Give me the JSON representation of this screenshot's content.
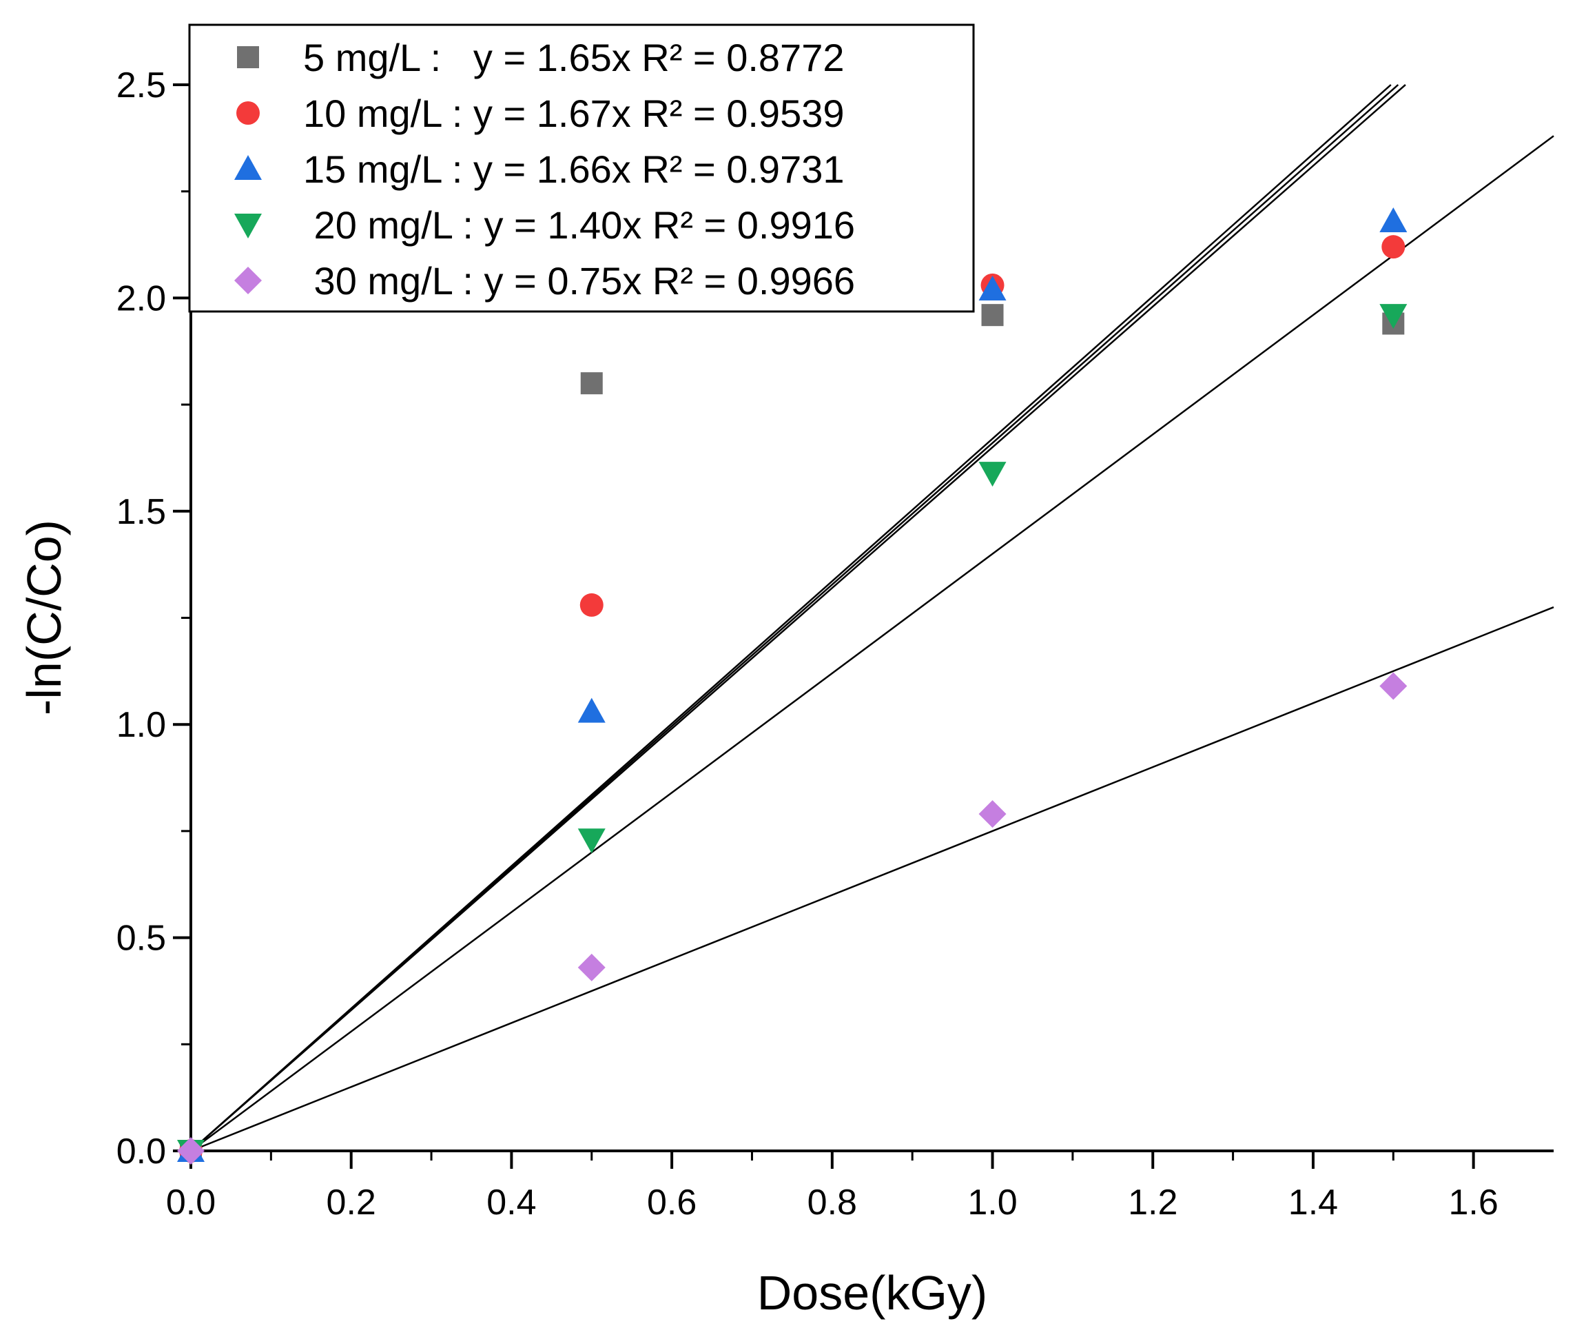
{
  "chart_data": {
    "type": "scatter",
    "xlabel": "Dose(kGy)",
    "ylabel": "-ln(C/Co)",
    "xlim": [
      0,
      1.7
    ],
    "ylim": [
      0,
      2.5
    ],
    "x_ticks": [
      "0.0",
      "0.2",
      "0.4",
      "0.6",
      "0.8",
      "1.0",
      "1.2",
      "1.4",
      "1.6"
    ],
    "y_ticks": [
      "0.0",
      "0.5",
      "1.0",
      "1.5",
      "2.0",
      "2.5"
    ],
    "grid": false,
    "legend_position": "top-left",
    "series": [
      {
        "name": "5 mg/L :   y = 1.65x R² = 0.8772",
        "marker": "square",
        "color": "#707070",
        "slope": 1.65,
        "x": [
          0,
          0.5,
          1.0,
          1.5
        ],
        "y": [
          0,
          1.8,
          1.96,
          1.94
        ]
      },
      {
        "name": "10 mg/L : y = 1.67x R² = 0.9539",
        "marker": "circle",
        "color": "#f33a3a",
        "slope": 1.67,
        "x": [
          0,
          0.5,
          1.0,
          1.5
        ],
        "y": [
          0,
          1.28,
          2.03,
          2.12
        ]
      },
      {
        "name": "15 mg/L : y = 1.66x R² = 0.9731",
        "marker": "triangle-up",
        "color": "#1f6fe0",
        "slope": 1.66,
        "x": [
          0,
          0.5,
          1.0,
          1.5
        ],
        "y": [
          0,
          1.03,
          2.02,
          2.18
        ]
      },
      {
        "name": " 20 mg/L : y = 1.40x R² = 0.9916",
        "marker": "triangle-down",
        "color": "#17a85a",
        "slope": 1.4,
        "x": [
          0,
          0.5,
          1.0,
          1.5
        ],
        "y": [
          0,
          0.73,
          1.59,
          1.96
        ]
      },
      {
        "name": " 30 mg/L : y = 0.75x R² = 0.9966",
        "marker": "diamond",
        "color": "#c57fe0",
        "slope": 0.75,
        "x": [
          0,
          0.5,
          1.0,
          1.5
        ],
        "y": [
          0,
          0.43,
          0.79,
          1.09
        ]
      }
    ]
  }
}
